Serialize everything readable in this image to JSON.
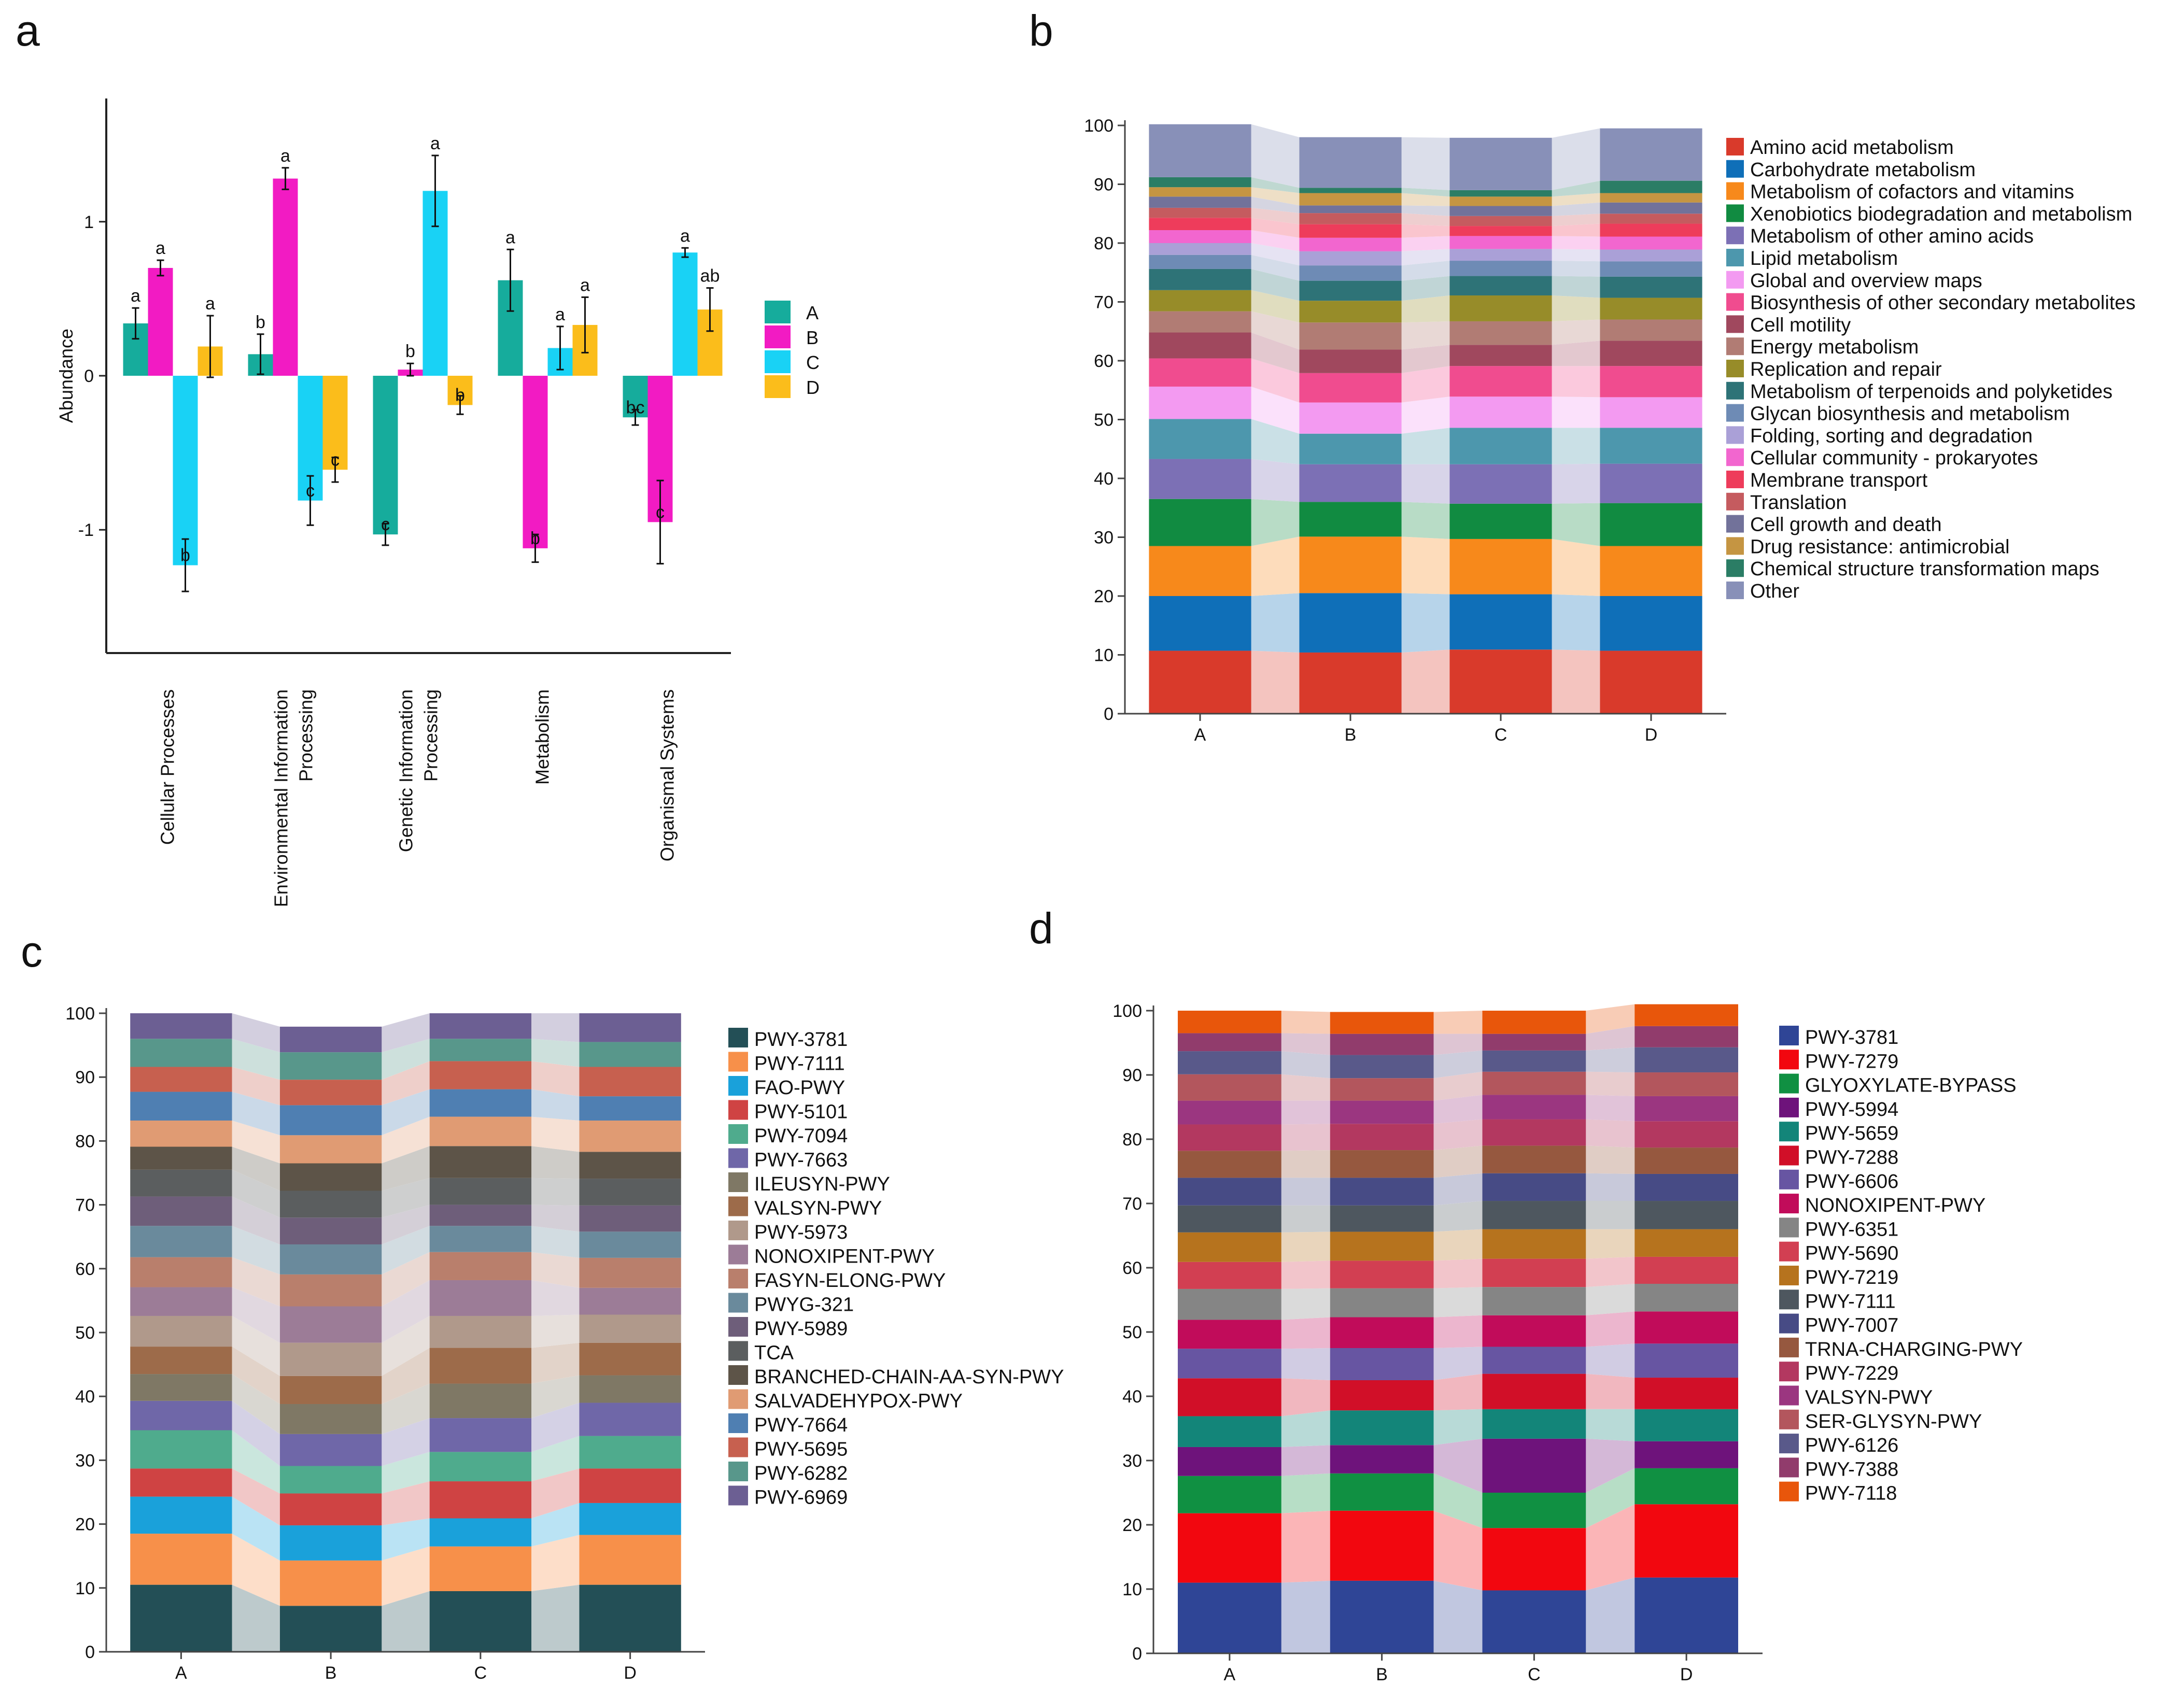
{
  "chart_data": [
    {
      "panel": "a",
      "type": "bar",
      "ylabel": "Abundance",
      "ylim": [
        -1.8,
        1.8
      ],
      "yticks": [
        -1,
        0,
        1
      ],
      "categories": [
        "Cellular Processes",
        "Environmental Information\nProcessing",
        "Genetic Information\nProcessing",
        "Metabolism",
        "Organismal Systems"
      ],
      "series": [
        {
          "name": "A",
          "color": "#16ac9c",
          "values": [
            0.34,
            0.14,
            -1.03,
            0.62,
            -0.27
          ],
          "errors": [
            0.1,
            0.13,
            0.07,
            0.2,
            0.05
          ],
          "labels": [
            "a",
            "b",
            "c",
            "a",
            "bc"
          ]
        },
        {
          "name": "B",
          "color": "#f21bc3",
          "values": [
            0.7,
            1.28,
            0.04,
            -1.12,
            -0.95
          ],
          "errors": [
            0.05,
            0.07,
            0.04,
            0.09,
            0.27
          ],
          "labels": [
            "a",
            "a",
            "b",
            "b",
            "c"
          ]
        },
        {
          "name": "C",
          "color": "#19d2f5",
          "values": [
            -1.23,
            -0.81,
            1.2,
            0.18,
            0.8
          ],
          "errors": [
            0.17,
            0.16,
            0.23,
            0.14,
            0.03
          ],
          "labels": [
            "b",
            "c",
            "a",
            "a",
            "a"
          ]
        },
        {
          "name": "D",
          "color": "#fbbd1b",
          "values": [
            0.19,
            -0.61,
            -0.19,
            0.33,
            0.43
          ],
          "errors": [
            0.2,
            0.08,
            0.06,
            0.18,
            0.14
          ],
          "labels": [
            "a",
            "c",
            "b",
            "a",
            "ab"
          ]
        }
      ]
    },
    {
      "panel": "b",
      "type": "area",
      "stacked": true,
      "ylim": [
        0,
        100
      ],
      "yticks": [
        0,
        10,
        20,
        30,
        40,
        50,
        60,
        70,
        80,
        90,
        100
      ],
      "categories": [
        "A",
        "B",
        "C",
        "D"
      ],
      "series": [
        {
          "name": "Amino acid metabolism",
          "color": "#d93a2b",
          "values": [
            10.7,
            10.4,
            10.9,
            10.7
          ]
        },
        {
          "name": "Carbohydrate metabolism",
          "color": "#0f6fb8",
          "values": [
            9.3,
            10.1,
            9.4,
            9.3
          ]
        },
        {
          "name": "Metabolism of cofactors and vitamins",
          "color": "#f7891b",
          "values": [
            8.5,
            9.6,
            9.4,
            8.5
          ]
        },
        {
          "name": "Xenobiotics biodegradation and metabolism",
          "color": "#118b41",
          "values": [
            8.0,
            5.9,
            6.0,
            7.3
          ]
        },
        {
          "name": "Metabolism of other amino acids",
          "color": "#7c70b5",
          "values": [
            6.8,
            6.4,
            6.7,
            6.7
          ]
        },
        {
          "name": "Lipid metabolism",
          "color": "#4d97ad",
          "values": [
            6.8,
            5.2,
            6.2,
            6.1
          ]
        },
        {
          "name": "Global and overview maps",
          "color": "#f39af1",
          "values": [
            5.5,
            5.3,
            5.3,
            5.2
          ]
        },
        {
          "name": "Biosynthesis of other secondary metabolites",
          "color": "#f04c8f",
          "values": [
            4.8,
            5.0,
            5.2,
            5.3
          ]
        },
        {
          "name": "Cell motility",
          "color": "#a0485e",
          "values": [
            4.4,
            4.0,
            3.6,
            4.3
          ]
        },
        {
          "name": "Energy metabolism",
          "color": "#b17c74",
          "values": [
            3.6,
            4.6,
            4.0,
            3.6
          ]
        },
        {
          "name": "Replication and repair",
          "color": "#978c29",
          "values": [
            3.6,
            3.7,
            4.4,
            3.7
          ]
        },
        {
          "name": "Metabolism of terpenoids and polyketides",
          "color": "#2e7377",
          "values": [
            3.6,
            3.4,
            3.3,
            3.6
          ]
        },
        {
          "name": "Glycan biosynthesis and metabolism",
          "color": "#6e8bb5",
          "values": [
            2.4,
            2.6,
            2.6,
            2.6
          ]
        },
        {
          "name": "Folding, sorting and degradation",
          "color": "#aaa0d7",
          "values": [
            2.0,
            2.4,
            2.0,
            2.0
          ]
        },
        {
          "name": "Cellular community - prokaryotes",
          "color": "#f266cf",
          "values": [
            2.2,
            2.3,
            2.2,
            2.2
          ]
        },
        {
          "name": "Membrane transport",
          "color": "#ee3c5b",
          "values": [
            2.1,
            2.3,
            1.7,
            2.2
          ]
        },
        {
          "name": "Translation",
          "color": "#c55b5f",
          "values": [
            1.7,
            1.9,
            1.7,
            1.7
          ]
        },
        {
          "name": "Cell growth and death",
          "color": "#72729a",
          "values": [
            1.9,
            1.3,
            1.7,
            1.9
          ]
        },
        {
          "name": "Drug resistance: antimicrobial",
          "color": "#c59542",
          "values": [
            1.6,
            2.1,
            1.6,
            1.6
          ]
        },
        {
          "name": "Chemical structure transformation maps",
          "color": "#2b7d65",
          "values": [
            1.7,
            0.9,
            1.1,
            2.1
          ]
        },
        {
          "name": "Other",
          "color": "#8890b8",
          "values": [
            9.0,
            8.6,
            8.9,
            8.9
          ]
        }
      ]
    },
    {
      "panel": "c",
      "type": "area",
      "stacked": true,
      "ylim": [
        0,
        100
      ],
      "yticks": [
        0,
        10,
        20,
        30,
        40,
        50,
        60,
        70,
        80,
        90,
        100
      ],
      "categories": [
        "A",
        "B",
        "C",
        "D"
      ],
      "series": [
        {
          "name": "PWY-3781",
          "color": "#234f56",
          "values": [
            10.5,
            7.2,
            9.5,
            10.5
          ]
        },
        {
          "name": "PWY-7111",
          "color": "#f7904a",
          "values": [
            8.0,
            7.1,
            7.0,
            7.8
          ]
        },
        {
          "name": "FAO-PWY",
          "color": "#1aa1da",
          "values": [
            5.8,
            5.5,
            4.4,
            5.0
          ]
        },
        {
          "name": "PWY-5101",
          "color": "#cf4343",
          "values": [
            4.4,
            5.0,
            5.8,
            5.4
          ]
        },
        {
          "name": "PWY-7094",
          "color": "#4fab8d",
          "values": [
            6.0,
            4.3,
            4.6,
            5.1
          ]
        },
        {
          "name": "PWY-7663",
          "color": "#6f67a8",
          "values": [
            4.6,
            5.0,
            5.3,
            5.2
          ]
        },
        {
          "name": "ILEUSYN-PWY",
          "color": "#7f7865",
          "values": [
            4.2,
            4.7,
            5.4,
            4.3
          ]
        },
        {
          "name": "VALSYN-PWY",
          "color": "#9d6b4a",
          "values": [
            4.3,
            4.4,
            5.6,
            5.1
          ]
        },
        {
          "name": "PWY-5973",
          "color": "#b0998b",
          "values": [
            4.8,
            5.2,
            5.0,
            4.4
          ]
        },
        {
          "name": "NONOXIPENT-PWY",
          "color": "#9c7c97",
          "values": [
            4.5,
            5.7,
            5.6,
            4.2
          ]
        },
        {
          "name": "FASYN-ELONG-PWY",
          "color": "#b97f6c",
          "values": [
            4.7,
            5.0,
            4.4,
            4.7
          ]
        },
        {
          "name": "PWYG-321",
          "color": "#6a8a9c",
          "values": [
            4.9,
            4.7,
            4.1,
            4.1
          ]
        },
        {
          "name": "PWY-5989",
          "color": "#6e5e7a",
          "values": [
            4.6,
            4.2,
            3.3,
            4.1
          ]
        },
        {
          "name": "TCA",
          "color": "#5b5e5f",
          "values": [
            4.2,
            4.2,
            4.2,
            4.2
          ]
        },
        {
          "name": "BRANCHED-CHAIN-AA-SYN-PWY",
          "color": "#5d5448",
          "values": [
            3.6,
            4.3,
            5.0,
            4.2
          ]
        },
        {
          "name": "SALVADEHYPOX-PWY",
          "color": "#e09b73",
          "values": [
            4.1,
            4.4,
            4.6,
            4.9
          ]
        },
        {
          "name": "PWY-7664",
          "color": "#4f7fb2",
          "values": [
            4.5,
            4.7,
            4.3,
            3.8
          ]
        },
        {
          "name": "PWY-5695",
          "color": "#c7604f",
          "values": [
            3.9,
            4.0,
            4.4,
            4.6
          ]
        },
        {
          "name": "PWY-6282",
          "color": "#58978b",
          "values": [
            4.4,
            4.3,
            3.5,
            3.9
          ]
        },
        {
          "name": "PWY-6969",
          "color": "#6c5f93",
          "values": [
            4.0,
            4.0,
            4.0,
            4.5
          ]
        }
      ]
    },
    {
      "panel": "d",
      "type": "area",
      "stacked": true,
      "ylim": [
        0,
        100
      ],
      "yticks": [
        0,
        10,
        20,
        30,
        40,
        50,
        60,
        70,
        80,
        90,
        100
      ],
      "categories": [
        "A",
        "B",
        "C",
        "D"
      ],
      "series": [
        {
          "name": "PWY-3781",
          "color": "#2f4596",
          "values": [
            11.0,
            11.3,
            9.8,
            11.8
          ]
        },
        {
          "name": "PWY-7279",
          "color": "#f2070f",
          "values": [
            10.8,
            10.9,
            9.7,
            11.4
          ]
        },
        {
          "name": "GLYOXYLATE-BYPASS",
          "color": "#109042",
          "values": [
            5.8,
            5.8,
            5.5,
            5.6
          ]
        },
        {
          "name": "PWY-5994",
          "color": "#6e137b",
          "values": [
            4.5,
            4.4,
            8.4,
            4.2
          ]
        },
        {
          "name": "PWY-5659",
          "color": "#138579",
          "values": [
            4.8,
            5.4,
            4.6,
            5.0
          ]
        },
        {
          "name": "PWY-7288",
          "color": "#d10f28",
          "values": [
            5.9,
            4.7,
            5.5,
            4.9
          ]
        },
        {
          "name": "PWY-6606",
          "color": "#6755a2",
          "values": [
            4.6,
            5.0,
            4.2,
            5.3
          ]
        },
        {
          "name": "NONOXIPENT-PWY",
          "color": "#c10c5a",
          "values": [
            4.5,
            4.8,
            4.9,
            5.0
          ]
        },
        {
          "name": "PWY-6351",
          "color": "#858585",
          "values": [
            4.8,
            4.5,
            4.4,
            4.3
          ]
        },
        {
          "name": "PWY-5690",
          "color": "#d23f52",
          "values": [
            4.2,
            4.3,
            4.4,
            4.2
          ]
        },
        {
          "name": "PWY-7219",
          "color": "#b6731e",
          "values": [
            4.6,
            4.5,
            4.6,
            4.3
          ]
        },
        {
          "name": "PWY-7111",
          "color": "#4e575f",
          "values": [
            4.2,
            4.1,
            4.4,
            4.4
          ]
        },
        {
          "name": "PWY-7007",
          "color": "#474b85",
          "values": [
            4.3,
            4.3,
            4.3,
            4.2
          ]
        },
        {
          "name": "TRNA-CHARGING-PWY",
          "color": "#96583f",
          "values": [
            4.2,
            4.3,
            4.3,
            4.1
          ]
        },
        {
          "name": "PWY-7229",
          "color": "#b33860",
          "values": [
            4.1,
            4.1,
            4.1,
            4.1
          ]
        },
        {
          "name": "VALSYN-PWY",
          "color": "#9b3680",
          "values": [
            3.7,
            3.6,
            3.8,
            3.9
          ]
        },
        {
          "name": "SER-GLYSYN-PWY",
          "color": "#b3565d",
          "values": [
            4.1,
            3.5,
            3.6,
            3.7
          ]
        },
        {
          "name": "PWY-6126",
          "color": "#59598a",
          "values": [
            3.6,
            3.6,
            3.3,
            3.9
          ]
        },
        {
          "name": "PWY-7388",
          "color": "#913c6c",
          "values": [
            2.8,
            3.3,
            2.6,
            3.3
          ]
        },
        {
          "name": "PWY-7118",
          "color": "#e8560b",
          "values": [
            3.5,
            3.4,
            3.6,
            3.4
          ]
        }
      ]
    }
  ]
}
